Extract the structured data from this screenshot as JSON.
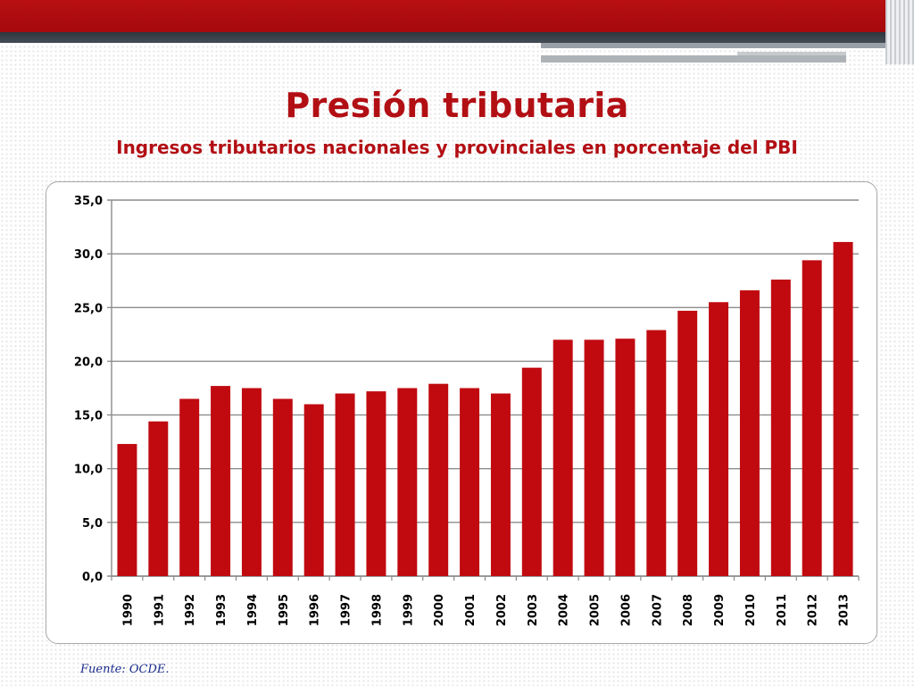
{
  "slide": {
    "title": "Presión tributaria",
    "subtitle": "Ingresos tributarios nacionales y provinciales en porcentaje del PBI",
    "source": "Fuente: OCDE."
  },
  "colors": {
    "accent": "#b20f14",
    "bar": "#c00a10",
    "header_band": "#a8090c",
    "header_dark": "#3a424c",
    "source_text": "#1b2c8c"
  },
  "chart_data": {
    "type": "bar",
    "title": "",
    "xlabel": "",
    "ylabel": "",
    "ylim": [
      0,
      35
    ],
    "yticks": [
      "0,0",
      "5,0",
      "10,0",
      "15,0",
      "20,0",
      "25,0",
      "30,0",
      "35,0"
    ],
    "grid": true,
    "legend": "none",
    "categories": [
      "1990",
      "1991",
      "1992",
      "1993",
      "1994",
      "1995",
      "1996",
      "1997",
      "1998",
      "1999",
      "2000",
      "2001",
      "2002",
      "2003",
      "2004",
      "2005",
      "2006",
      "2007",
      "2008",
      "2009",
      "2010",
      "2011",
      "2012",
      "2013"
    ],
    "values": [
      12.3,
      14.4,
      16.5,
      17.7,
      17.5,
      16.5,
      16.0,
      17.0,
      17.2,
      17.5,
      17.9,
      17.5,
      17.0,
      19.4,
      22.0,
      22.0,
      22.1,
      22.9,
      24.7,
      25.5,
      26.6,
      27.6,
      29.4,
      31.1
    ]
  }
}
